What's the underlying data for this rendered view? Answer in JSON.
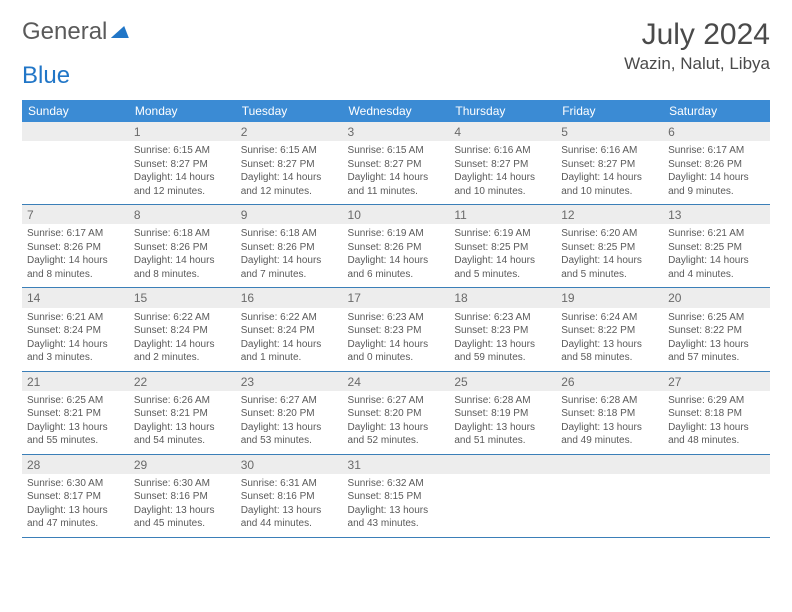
{
  "logo": {
    "word1": "General",
    "word2": "Blue"
  },
  "title": "July 2024",
  "location": "Wazin, Nalut, Libya",
  "weekdays": [
    "Sunday",
    "Monday",
    "Tuesday",
    "Wednesday",
    "Thursday",
    "Friday",
    "Saturday"
  ],
  "colors": {
    "header_bg": "#3b8bd4",
    "header_text": "#ffffff",
    "daynum_bg": "#ededed",
    "rule": "#3b7fb8",
    "text": "#5a5a5a",
    "logo_blue": "#2176c7"
  },
  "weeks": [
    [
      null,
      {
        "n": "1",
        "sr": "Sunrise: 6:15 AM",
        "ss": "Sunset: 8:27 PM",
        "dl": "Daylight: 14 hours and 12 minutes."
      },
      {
        "n": "2",
        "sr": "Sunrise: 6:15 AM",
        "ss": "Sunset: 8:27 PM",
        "dl": "Daylight: 14 hours and 12 minutes."
      },
      {
        "n": "3",
        "sr": "Sunrise: 6:15 AM",
        "ss": "Sunset: 8:27 PM",
        "dl": "Daylight: 14 hours and 11 minutes."
      },
      {
        "n": "4",
        "sr": "Sunrise: 6:16 AM",
        "ss": "Sunset: 8:27 PM",
        "dl": "Daylight: 14 hours and 10 minutes."
      },
      {
        "n": "5",
        "sr": "Sunrise: 6:16 AM",
        "ss": "Sunset: 8:27 PM",
        "dl": "Daylight: 14 hours and 10 minutes."
      },
      {
        "n": "6",
        "sr": "Sunrise: 6:17 AM",
        "ss": "Sunset: 8:26 PM",
        "dl": "Daylight: 14 hours and 9 minutes."
      }
    ],
    [
      {
        "n": "7",
        "sr": "Sunrise: 6:17 AM",
        "ss": "Sunset: 8:26 PM",
        "dl": "Daylight: 14 hours and 8 minutes."
      },
      {
        "n": "8",
        "sr": "Sunrise: 6:18 AM",
        "ss": "Sunset: 8:26 PM",
        "dl": "Daylight: 14 hours and 8 minutes."
      },
      {
        "n": "9",
        "sr": "Sunrise: 6:18 AM",
        "ss": "Sunset: 8:26 PM",
        "dl": "Daylight: 14 hours and 7 minutes."
      },
      {
        "n": "10",
        "sr": "Sunrise: 6:19 AM",
        "ss": "Sunset: 8:26 PM",
        "dl": "Daylight: 14 hours and 6 minutes."
      },
      {
        "n": "11",
        "sr": "Sunrise: 6:19 AM",
        "ss": "Sunset: 8:25 PM",
        "dl": "Daylight: 14 hours and 5 minutes."
      },
      {
        "n": "12",
        "sr": "Sunrise: 6:20 AM",
        "ss": "Sunset: 8:25 PM",
        "dl": "Daylight: 14 hours and 5 minutes."
      },
      {
        "n": "13",
        "sr": "Sunrise: 6:21 AM",
        "ss": "Sunset: 8:25 PM",
        "dl": "Daylight: 14 hours and 4 minutes."
      }
    ],
    [
      {
        "n": "14",
        "sr": "Sunrise: 6:21 AM",
        "ss": "Sunset: 8:24 PM",
        "dl": "Daylight: 14 hours and 3 minutes."
      },
      {
        "n": "15",
        "sr": "Sunrise: 6:22 AM",
        "ss": "Sunset: 8:24 PM",
        "dl": "Daylight: 14 hours and 2 minutes."
      },
      {
        "n": "16",
        "sr": "Sunrise: 6:22 AM",
        "ss": "Sunset: 8:24 PM",
        "dl": "Daylight: 14 hours and 1 minute."
      },
      {
        "n": "17",
        "sr": "Sunrise: 6:23 AM",
        "ss": "Sunset: 8:23 PM",
        "dl": "Daylight: 14 hours and 0 minutes."
      },
      {
        "n": "18",
        "sr": "Sunrise: 6:23 AM",
        "ss": "Sunset: 8:23 PM",
        "dl": "Daylight: 13 hours and 59 minutes."
      },
      {
        "n": "19",
        "sr": "Sunrise: 6:24 AM",
        "ss": "Sunset: 8:22 PM",
        "dl": "Daylight: 13 hours and 58 minutes."
      },
      {
        "n": "20",
        "sr": "Sunrise: 6:25 AM",
        "ss": "Sunset: 8:22 PM",
        "dl": "Daylight: 13 hours and 57 minutes."
      }
    ],
    [
      {
        "n": "21",
        "sr": "Sunrise: 6:25 AM",
        "ss": "Sunset: 8:21 PM",
        "dl": "Daylight: 13 hours and 55 minutes."
      },
      {
        "n": "22",
        "sr": "Sunrise: 6:26 AM",
        "ss": "Sunset: 8:21 PM",
        "dl": "Daylight: 13 hours and 54 minutes."
      },
      {
        "n": "23",
        "sr": "Sunrise: 6:27 AM",
        "ss": "Sunset: 8:20 PM",
        "dl": "Daylight: 13 hours and 53 minutes."
      },
      {
        "n": "24",
        "sr": "Sunrise: 6:27 AM",
        "ss": "Sunset: 8:20 PM",
        "dl": "Daylight: 13 hours and 52 minutes."
      },
      {
        "n": "25",
        "sr": "Sunrise: 6:28 AM",
        "ss": "Sunset: 8:19 PM",
        "dl": "Daylight: 13 hours and 51 minutes."
      },
      {
        "n": "26",
        "sr": "Sunrise: 6:28 AM",
        "ss": "Sunset: 8:18 PM",
        "dl": "Daylight: 13 hours and 49 minutes."
      },
      {
        "n": "27",
        "sr": "Sunrise: 6:29 AM",
        "ss": "Sunset: 8:18 PM",
        "dl": "Daylight: 13 hours and 48 minutes."
      }
    ],
    [
      {
        "n": "28",
        "sr": "Sunrise: 6:30 AM",
        "ss": "Sunset: 8:17 PM",
        "dl": "Daylight: 13 hours and 47 minutes."
      },
      {
        "n": "29",
        "sr": "Sunrise: 6:30 AM",
        "ss": "Sunset: 8:16 PM",
        "dl": "Daylight: 13 hours and 45 minutes."
      },
      {
        "n": "30",
        "sr": "Sunrise: 6:31 AM",
        "ss": "Sunset: 8:16 PM",
        "dl": "Daylight: 13 hours and 44 minutes."
      },
      {
        "n": "31",
        "sr": "Sunrise: 6:32 AM",
        "ss": "Sunset: 8:15 PM",
        "dl": "Daylight: 13 hours and 43 minutes."
      },
      null,
      null,
      null
    ]
  ]
}
